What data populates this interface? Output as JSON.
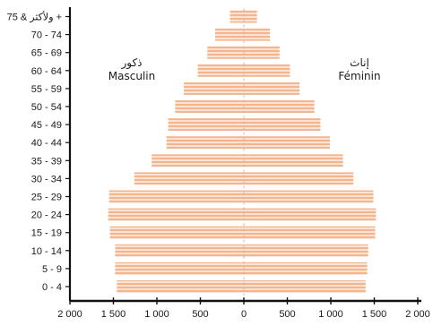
{
  "chart_data": {
    "type": "bar",
    "categories": [
      "0 - 4",
      "5 - 9",
      "10 - 14",
      "15 - 19",
      "20 - 24",
      "25 - 29",
      "30 - 34",
      "35 - 39",
      "40 - 44",
      "45 - 49",
      "50 - 54",
      "55 - 59",
      "60 - 64",
      "65 - 69",
      "70 - 74",
      "75 & ولأكثر +"
    ],
    "series": [
      {
        "name": "ذكور Masculin",
        "values": [
          1460,
          1480,
          1480,
          1540,
          1560,
          1550,
          1260,
          1060,
          890,
          870,
          790,
          690,
          530,
          420,
          330,
          160
        ]
      },
      {
        "name": "إناث Féminin",
        "values": [
          1400,
          1420,
          1430,
          1510,
          1520,
          1490,
          1260,
          1140,
          990,
          880,
          810,
          640,
          530,
          410,
          300,
          150
        ]
      }
    ],
    "xticks": [
      "2 000",
      "1 500",
      "1 000",
      "500",
      "0",
      "500",
      "1 000",
      "1 500",
      "2 000"
    ],
    "xlim": [
      -2000,
      2000
    ],
    "grid": false,
    "legend": "inside-top",
    "colors": {
      "bar": "#f3b58e",
      "bar_stripe": "#fbe2d2",
      "center_line": "#bcbcbc",
      "axis": "#111111"
    }
  },
  "labels": {
    "left_ar": "ذكور",
    "left_fr": "Masculin",
    "right_ar": "إناث",
    "right_fr": "Féminin"
  }
}
